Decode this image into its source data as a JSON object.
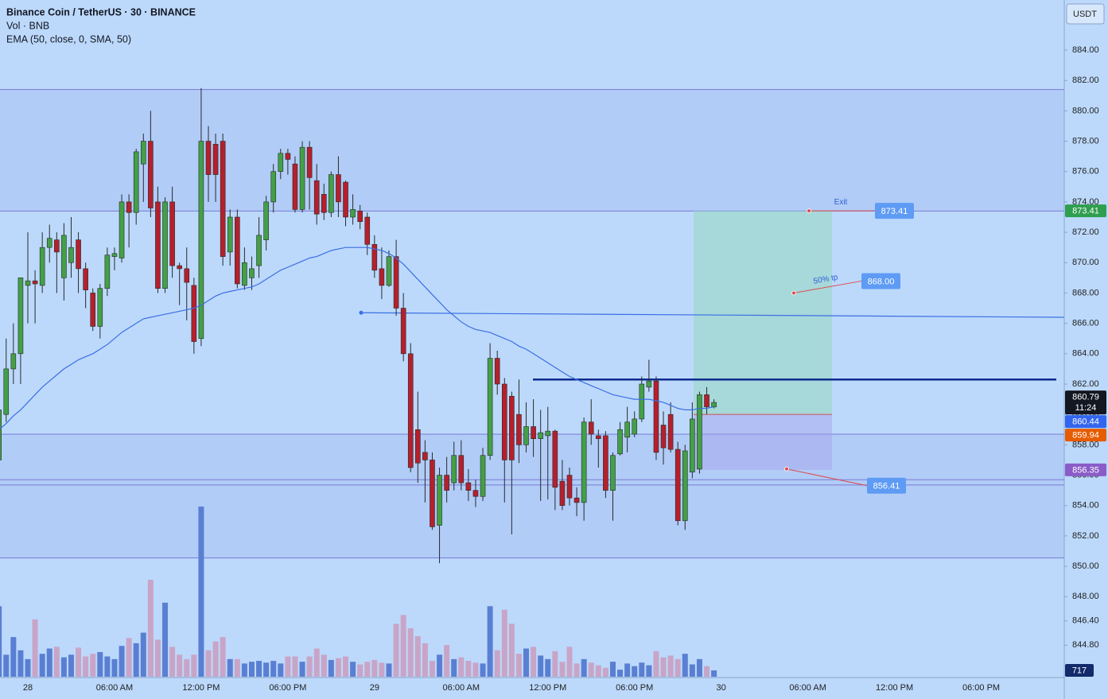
{
  "header": {
    "title": "Binance Coin / TetherUS · 30 · BINANCE",
    "volume_label": "Vol · BNB",
    "ema_label": "EMA (50, close, 0, SMA, 50)",
    "currency": "USDT"
  },
  "chart_data": {
    "type": "candlestick",
    "categories": [
      null,
      null,
      null,
      null,
      "28",
      null,
      null,
      null,
      null,
      null,
      null,
      null,
      null,
      null,
      null,
      null,
      "06:00 AM",
      null,
      null,
      null,
      null,
      null,
      null,
      null,
      null,
      null,
      null,
      null,
      "12:00 PM",
      null,
      null,
      null,
      null,
      null,
      null,
      null,
      null,
      null,
      null,
      null,
      "06:00 PM",
      null,
      null,
      null,
      null,
      null,
      null,
      null,
      null,
      null,
      null,
      null,
      "29",
      null,
      null,
      null,
      null,
      null,
      null,
      null,
      null,
      null,
      null,
      null,
      "06:00 AM",
      null,
      null,
      null,
      null,
      null,
      null,
      null,
      null,
      null,
      null,
      null,
      "12:00 PM",
      null,
      null,
      null,
      null,
      null,
      null,
      null,
      null,
      null,
      null,
      null,
      "06:00 PM",
      null,
      null,
      null,
      null,
      null,
      null,
      null,
      null,
      null,
      null,
      null,
      "30",
      null,
      null,
      null,
      null,
      null,
      null,
      null,
      null,
      null,
      null,
      null,
      "06:00 AM",
      null,
      null,
      null,
      null,
      null,
      null,
      null,
      null,
      null,
      null,
      null,
      "12:00 PM",
      null,
      null,
      null,
      null,
      null,
      null,
      null,
      null,
      null,
      null,
      null,
      "06:00 PM"
    ],
    "open": [
      857,
      860,
      863,
      864,
      868.5,
      868.8,
      868.5,
      871,
      871.5,
      869,
      870,
      871.5,
      869.6,
      868,
      865.8,
      868.3,
      870.4,
      870.3,
      874,
      873.3,
      876.5,
      878,
      874,
      868.3,
      874,
      869.8,
      869.6,
      868.5,
      865,
      878,
      877.8,
      878,
      870.7,
      873,
      868.5,
      869,
      869.8,
      871.5,
      874,
      876,
      877.2,
      876.5,
      873.5,
      877.6,
      875.4,
      874.5,
      873.3,
      875.8,
      875.3,
      873,
      873.4,
      873,
      871.2,
      869.6,
      868.5,
      870.4,
      867,
      864,
      859,
      857.5,
      857,
      852.7,
      856,
      855.5,
      857.3,
      855.5,
      855,
      854.6,
      857.3,
      863.7,
      862,
      861.2,
      860,
      858,
      859.2,
      858.4,
      858.6,
      858.9,
      855.6,
      856,
      854.5,
      854.2,
      859.5,
      858.6,
      858.6,
      855,
      857.4,
      858.5,
      858.7,
      859.7,
      861.8,
      862.2,
      859.3,
      860,
      857.7,
      853,
      856.2,
      856.4,
      861.3,
      860.5,
      null,
      null,
      null,
      null,
      null,
      null,
      null,
      null,
      null,
      null,
      null,
      null,
      null,
      null,
      null,
      null,
      null,
      null,
      null,
      null,
      null,
      null,
      null,
      null,
      null,
      null,
      null,
      null,
      null,
      null,
      null,
      null,
      null,
      null,
      null,
      null,
      null
    ],
    "high": [
      861,
      865,
      866,
      869,
      872,
      869.5,
      872,
      872.5,
      872,
      872.6,
      873,
      872,
      870,
      868.3,
      868.6,
      871,
      871,
      874.5,
      874.5,
      877.5,
      878.5,
      880,
      875,
      874.3,
      875,
      870,
      871,
      869,
      881.5,
      879,
      878.5,
      878.5,
      873.5,
      873.5,
      871,
      870.4,
      873,
      874.4,
      876.5,
      877.5,
      877.5,
      877,
      878,
      878,
      876.5,
      875.2,
      876,
      877,
      875.4,
      874.5,
      873.8,
      873.3,
      871.8,
      871,
      870.8,
      871.5,
      868,
      864.7,
      861.5,
      858.3,
      857.5,
      856.5,
      857.2,
      858.2,
      858.3,
      856.4,
      855.7,
      857.8,
      864.7,
      864.2,
      862.4,
      861.5,
      862.3,
      860.8,
      861,
      860.3,
      860.5,
      859,
      857,
      856.5,
      855.2,
      859.8,
      861,
      859,
      858.9,
      857.5,
      859.5,
      860.5,
      860.2,
      862.5,
      863.6,
      862.5,
      860.2,
      860.8,
      858.2,
      858,
      860.8,
      861.5,
      861.8,
      861,
      null,
      null,
      null,
      null,
      null,
      null,
      null,
      null,
      null,
      null,
      null,
      null,
      null,
      null,
      null,
      null,
      null,
      null,
      null,
      null,
      null,
      null,
      null,
      null,
      null,
      null,
      null,
      null,
      null,
      null,
      null,
      null,
      null,
      null,
      null,
      null,
      null
    ],
    "low": [
      856.5,
      859.5,
      862,
      862,
      866,
      866,
      868,
      870,
      868,
      867.5,
      869,
      868,
      867,
      865.5,
      865,
      867.8,
      869.5,
      870,
      871,
      872.5,
      874,
      873,
      868,
      868,
      869,
      867.2,
      866.2,
      864,
      864.5,
      874,
      874,
      869.8,
      869.8,
      868.3,
      868.2,
      868.2,
      869,
      870.8,
      873.3,
      875.5,
      875.8,
      873.3,
      873.3,
      873.5,
      872.5,
      872.8,
      873,
      873,
      872.4,
      872.5,
      872.2,
      870.5,
      869,
      867.6,
      868.4,
      866.5,
      863.5,
      856.2,
      855.5,
      854.2,
      852.4,
      850.2,
      854.2,
      855,
      855,
      854.3,
      853.9,
      854.3,
      857,
      861.3,
      854.2,
      852.1,
      856.8,
      857.5,
      857.2,
      854.3,
      854.4,
      853.7,
      853.7,
      854,
      853.3,
      853,
      858,
      856.5,
      854.5,
      853,
      857.3,
      857.5,
      858.5,
      859.5,
      861.5,
      857,
      856.7,
      857.5,
      852.7,
      852.4,
      855.8,
      856.1,
      860,
      860.4,
      null,
      null,
      null,
      null,
      null,
      null,
      null,
      null,
      null,
      null,
      null,
      null,
      null,
      null,
      null,
      null,
      null,
      null,
      null,
      null,
      null,
      null,
      null,
      null,
      null,
      null,
      null,
      null,
      null,
      null,
      null,
      null,
      null,
      null,
      null,
      null,
      null
    ],
    "close": [
      860.3,
      863,
      864,
      869,
      868.8,
      868.6,
      871,
      871.6,
      870.7,
      871.8,
      871,
      869.6,
      868.2,
      865.8,
      868.3,
      870.5,
      870.6,
      874,
      873.3,
      877.3,
      878,
      873.6,
      868.3,
      874,
      869.8,
      869.6,
      868.7,
      864.8,
      878,
      875.8,
      875.8,
      870.4,
      873,
      868.6,
      870,
      869.6,
      871.8,
      874,
      876,
      877.2,
      876.8,
      873.5,
      877.6,
      875.6,
      873.2,
      873.3,
      875.8,
      874,
      873,
      873.5,
      872.7,
      871.2,
      869.5,
      868.5,
      870.4,
      867,
      864,
      856.5,
      856.8,
      857,
      852.6,
      856,
      855,
      857.3,
      855.5,
      855,
      854.6,
      857.3,
      863.7,
      862,
      857,
      857,
      858,
      859.2,
      858.4,
      858.8,
      858.9,
      855.2,
      854,
      854.5,
      854.2,
      859.5,
      858.7,
      858.4,
      855,
      857.3,
      859,
      859.5,
      859.7,
      862,
      862.2,
      857.5,
      857.8,
      857.7,
      853,
      857.6,
      859.7,
      861.3,
      860.5,
      860.79,
      null,
      null,
      null,
      null,
      null,
      null,
      null,
      null,
      null,
      null,
      null,
      null,
      null,
      null,
      null,
      null,
      null,
      null,
      null,
      null,
      null,
      null,
      null,
      null,
      null,
      null,
      null,
      null,
      null,
      null,
      null,
      null,
      null,
      null,
      null,
      null,
      null
    ],
    "volume": [
      8000,
      2500,
      4500,
      3000,
      2000,
      6500,
      2600,
      3200,
      3400,
      2200,
      2500,
      3300,
      2300,
      2600,
      2800,
      2300,
      2000,
      3500,
      4400,
      3800,
      5000,
      11000,
      4200,
      8400,
      3400,
      2500,
      2000,
      2500,
      19300,
      3000,
      4000,
      4500,
      2000,
      2000,
      1500,
      1700,
      1800,
      1600,
      1800,
      1500,
      2300,
      2300,
      1700,
      2300,
      3200,
      2500,
      1900,
      2100,
      2300,
      1700,
      1400,
      1700,
      1900,
      1600,
      1500,
      6000,
      7000,
      5500,
      4600,
      3800,
      1800,
      2500,
      3600,
      2000,
      2200,
      1800,
      1600,
      1500,
      8000,
      3000,
      7600,
      6000,
      2600,
      3200,
      3400,
      2400,
      2000,
      2900,
      1700,
      3400,
      1500,
      2000,
      1600,
      1300,
      1000,
      1700,
      800,
      1500,
      1200,
      1600,
      1300,
      2900,
      2200,
      2400,
      2000,
      2600,
      1400,
      2000,
      1200,
      717,
      null,
      null,
      null,
      null,
      null,
      null,
      null,
      null,
      null,
      null,
      null,
      null,
      null,
      null,
      null,
      null,
      null,
      null,
      null,
      null,
      null,
      null,
      null,
      null,
      null,
      null,
      null,
      null,
      null,
      null,
      null,
      null,
      null,
      null,
      null,
      null,
      null
    ],
    "ema": [
      859.0,
      859.4,
      859.9,
      860.3,
      860.8,
      861.3,
      861.8,
      862.2,
      862.6,
      863.0,
      863.3,
      863.6,
      863.8,
      864.0,
      864.3,
      864.6,
      865.0,
      865.4,
      865.7,
      866.0,
      866.3,
      866.4,
      866.5,
      866.6,
      866.7,
      866.8,
      866.9,
      867.0,
      867.2,
      867.5,
      867.8,
      868.0,
      868.1,
      868.2,
      868.3,
      868.4,
      868.6,
      868.9,
      869.2,
      869.5,
      869.7,
      869.9,
      870.1,
      870.3,
      870.4,
      870.6,
      870.8,
      870.9,
      871.0,
      871.0,
      871.0,
      871.0,
      870.9,
      870.8,
      870.6,
      870.3,
      869.9,
      869.4,
      868.9,
      868.4,
      867.9,
      867.4,
      866.9,
      866.5,
      866.1,
      865.8,
      865.6,
      865.5,
      865.4,
      865.2,
      865.0,
      864.8,
      864.5,
      864.3,
      864.0,
      863.7,
      863.4,
      863.1,
      862.8,
      862.5,
      862.3,
      862.1,
      861.9,
      861.7,
      861.5,
      861.3,
      861.2,
      861.1,
      861.0,
      861.0,
      861.0,
      860.9,
      860.8,
      860.6,
      860.4,
      860.3,
      860.3,
      860.4,
      860.4,
      860.5,
      null,
      null,
      null,
      null,
      null,
      null,
      null,
      null,
      null,
      null,
      null,
      null,
      null,
      null,
      null,
      null,
      null,
      null,
      null,
      null,
      null,
      null,
      null,
      null,
      null,
      null,
      null,
      null,
      null,
      null,
      null,
      null,
      null,
      null,
      null,
      null,
      null
    ],
    "up_color": "#43a047",
    "down_color": "#b5202c",
    "volume_up_color": "#5a7fd2",
    "volume_down_color": "#c8a5c7",
    "ema_color": "#3a6fe2",
    "ylim": [
      842.67,
      887.3
    ],
    "yticks": [
      {
        "value": 884,
        "label": "884.00"
      },
      {
        "value": 882,
        "label": "882.00"
      },
      {
        "value": 880,
        "label": "880.00"
      },
      {
        "value": 878,
        "label": "878.00"
      },
      {
        "value": 876,
        "label": "876.00"
      },
      {
        "value": 874,
        "label": "874.00"
      },
      {
        "value": 872,
        "label": "872.00"
      },
      {
        "value": 870,
        "label": "870.00"
      },
      {
        "value": 868,
        "label": "868.00"
      },
      {
        "value": 866,
        "label": "866.00"
      },
      {
        "value": 864,
        "label": "864.00"
      },
      {
        "value": 862,
        "label": "862.00"
      },
      {
        "value": 860,
        "label": "860.00"
      },
      {
        "value": 858,
        "label": "858.00"
      },
      {
        "value": 856,
        "label": "856.00"
      },
      {
        "value": 854,
        "label": "854.00"
      },
      {
        "value": 852,
        "label": "852.00"
      },
      {
        "value": 850,
        "label": "850.00"
      },
      {
        "value": 848,
        "label": "848.00"
      },
      {
        "value": 846.4,
        "label": "846.40"
      },
      {
        "value": 844.8,
        "label": "844.80"
      }
    ],
    "zones": [
      [
        873.4,
        881.4
      ],
      [
        850.55,
        858.7
      ]
    ],
    "levels": [
      855.7,
      855.35
    ],
    "resistance": 862.3,
    "trendline": [
      866.7,
      866.4
    ],
    "position": {
      "entry": 860.0,
      "target": 873.41,
      "stop": 856.35
    },
    "callouts": [
      {
        "text": "Exit",
        "value": 873.41
      },
      {
        "text": "50% tp",
        "value": 868.0,
        "label": "868.00"
      },
      {
        "value": 856.41
      }
    ],
    "axis_tags": [
      {
        "value": 873.41,
        "color": "#2e9e4f"
      },
      {
        "value": 860.79,
        "color": "#131722",
        "countdown": "11:24"
      },
      {
        "value": 860.44,
        "color": "#3366ee"
      },
      {
        "value": 859.94,
        "color": "#e65c00"
      },
      {
        "value": 856.35,
        "color": "#8a5cc8"
      }
    ],
    "volume_tag": {
      "value": 717,
      "color": "#132a6b"
    }
  }
}
